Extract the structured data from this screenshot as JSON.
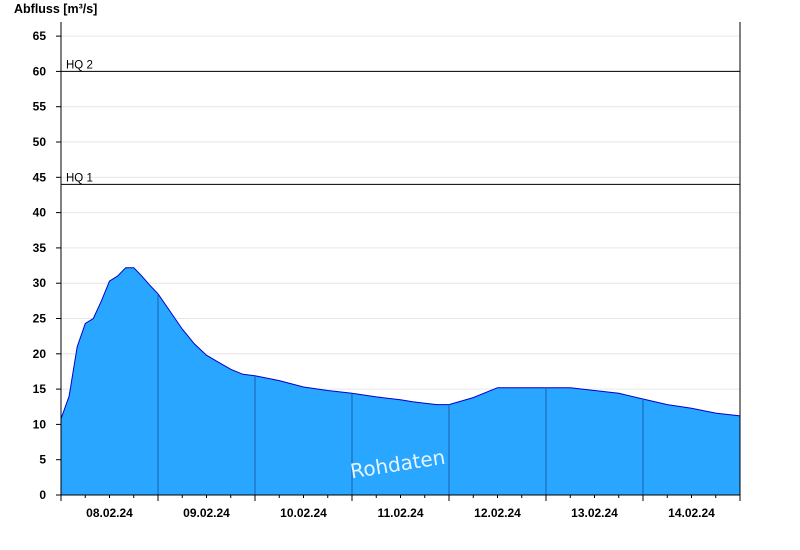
{
  "chart_data": {
    "type": "area",
    "ylabel": "Abfluss [m³/s]",
    "xlabel": "",
    "title": "",
    "ylim": [
      0,
      67
    ],
    "xlim": [
      "07.02.24 18:00",
      "14.02.24 18:00"
    ],
    "yticks": [
      0,
      5,
      10,
      15,
      20,
      25,
      30,
      35,
      40,
      45,
      50,
      55,
      60,
      65
    ],
    "xtick_labels": [
      "08.02.24",
      "09.02.24",
      "10.02.24",
      "11.02.24",
      "12.02.24",
      "13.02.24",
      "14.02.24"
    ],
    "day_boundaries": [
      "08.02.24 18:00",
      "09.02.24 18:00",
      "10.02.24 18:00",
      "11.02.24 18:00",
      "12.02.24 18:00",
      "13.02.24 18:00"
    ],
    "grid": true,
    "fill_color": "#29a6ff",
    "line_color": "#0000cc",
    "reference_lines": [
      {
        "label": "HQ 1",
        "value": 44
      },
      {
        "label": "HQ 2",
        "value": 60
      }
    ],
    "watermark": "Rohdaten",
    "series": [
      {
        "x": [
          "07.02.24 18:00",
          "07.02.24 20:00",
          "07.02.24 22:00",
          "08.02.24 00:00",
          "08.02.24 02:00",
          "08.02.24 04:00",
          "08.02.24 06:00",
          "08.02.24 08:00",
          "08.02.24 10:00",
          "08.02.24 12:00",
          "08.02.24 14:00",
          "08.02.24 16:00",
          "08.02.24 18:00",
          "08.02.24 21:00",
          "09.02.24 00:00",
          "09.02.24 03:00",
          "09.02.24 06:00",
          "09.02.24 09:00",
          "09.02.24 12:00",
          "09.02.24 15:00",
          "09.02.24 18:00",
          "10.02.24 00:00",
          "10.02.24 06:00",
          "10.02.24 12:00",
          "10.02.24 18:00",
          "11.02.24 00:00",
          "11.02.24 06:00",
          "11.02.24 09:00",
          "11.02.24 12:00",
          "11.02.24 15:00",
          "11.02.24 18:00",
          "12.02.24 00:00",
          "12.02.24 06:00",
          "12.02.24 12:00",
          "12.02.24 18:00",
          "13.02.24 00:00",
          "13.02.24 06:00",
          "13.02.24 12:00",
          "13.02.24 18:00",
          "14.02.24 00:00",
          "14.02.24 06:00",
          "14.02.24 12:00",
          "14.02.24 18:00"
        ],
        "y": [
          10.8,
          14,
          21,
          24.3,
          25,
          27.5,
          30.3,
          31,
          32.2,
          32.2,
          31,
          29.7,
          28.5,
          26,
          23.5,
          21.4,
          19.8,
          18.8,
          17.8,
          17.1,
          16.9,
          16.2,
          15.3,
          14.8,
          14.4,
          13.9,
          13.5,
          13.2,
          13.0,
          12.8,
          12.8,
          13.8,
          15.2,
          15.2,
          15.2,
          15.2,
          14.8,
          14.4,
          13.6,
          12.8,
          12.3,
          11.6,
          11.2
        ]
      }
    ]
  }
}
